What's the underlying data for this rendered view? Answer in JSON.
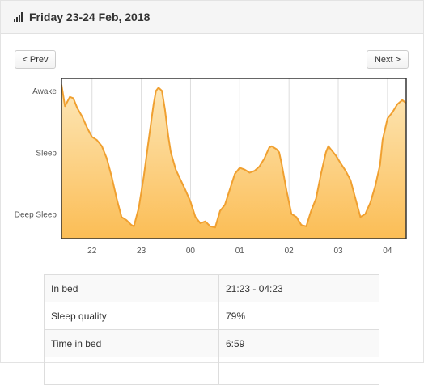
{
  "header": {
    "title": "Friday 23-24 Feb, 2018",
    "icon": "signal-bars-icon"
  },
  "nav": {
    "prev_label": "< Prev",
    "next_label": "Next >"
  },
  "chart_data": {
    "type": "area",
    "x_unit": "hour of night (21 = 21:00, 25 = 01:00 next day)",
    "xlim": [
      21.38,
      28.38
    ],
    "xticks": [
      22,
      23,
      24,
      25,
      26,
      27,
      28
    ],
    "xtick_labels": [
      "22",
      "23",
      "00",
      "01",
      "02",
      "03",
      "04"
    ],
    "y_levels": [
      "Deep Sleep",
      "Sleep",
      "Awake"
    ],
    "y_tick_values": [
      0,
      1,
      2
    ],
    "ylim": [
      -0.4,
      2.2
    ],
    "grid": true,
    "colors": {
      "line": "#f0a030",
      "fill_top": "#fde7b8",
      "fill_bottom": "#fbbd55",
      "grid": "#dddddd"
    },
    "series": [
      {
        "x": [
          21.38,
          21.45,
          21.55,
          21.62,
          21.7,
          21.8,
          21.9,
          22.0,
          22.1,
          22.2,
          22.3,
          22.4,
          22.5,
          22.6,
          22.7,
          22.8,
          22.85,
          22.95,
          23.05,
          23.15,
          23.25,
          23.3,
          23.35,
          23.42,
          23.48,
          23.55,
          23.6,
          23.7,
          23.8,
          23.9,
          24.0,
          24.1,
          24.2,
          24.3,
          24.4,
          24.5,
          24.6,
          24.7,
          24.8,
          24.9,
          25.0,
          25.1,
          25.2,
          25.3,
          25.4,
          25.5,
          25.6,
          25.65,
          25.75,
          25.8,
          25.85,
          25.95,
          26.05,
          26.15,
          26.25,
          26.35,
          26.45,
          26.55,
          26.65,
          26.75,
          26.8,
          26.9,
          26.95,
          27.05,
          27.15,
          27.25,
          27.35,
          27.45,
          27.55,
          27.65,
          27.75,
          27.85,
          27.9,
          28.0,
          28.1,
          28.2,
          28.3,
          28.38
        ],
        "y": [
          2.1,
          1.75,
          1.9,
          1.88,
          1.72,
          1.58,
          1.4,
          1.25,
          1.2,
          1.1,
          0.9,
          0.6,
          0.25,
          -0.05,
          -0.1,
          -0.18,
          -0.2,
          0.1,
          0.6,
          1.2,
          1.78,
          2.0,
          2.05,
          2.0,
          1.7,
          1.25,
          1.0,
          0.72,
          0.55,
          0.38,
          0.2,
          -0.05,
          -0.15,
          -0.12,
          -0.2,
          -0.22,
          0.05,
          0.15,
          0.4,
          0.65,
          0.75,
          0.72,
          0.67,
          0.7,
          0.77,
          0.9,
          1.08,
          1.1,
          1.05,
          1.0,
          0.82,
          0.38,
          0.0,
          -0.05,
          -0.18,
          -0.2,
          0.05,
          0.25,
          0.65,
          1.0,
          1.1,
          1.0,
          0.95,
          0.82,
          0.7,
          0.55,
          0.25,
          -0.05,
          0.0,
          0.18,
          0.45,
          0.8,
          1.2,
          1.55,
          1.65,
          1.78,
          1.85,
          1.8
        ]
      }
    ]
  },
  "summary": {
    "rows": [
      {
        "label": "In bed",
        "value": "21:23 - 04:23"
      },
      {
        "label": "Sleep quality",
        "value": "79%"
      },
      {
        "label": "Time in bed",
        "value": "6:59"
      },
      {
        "label": "",
        "value": ""
      }
    ]
  }
}
